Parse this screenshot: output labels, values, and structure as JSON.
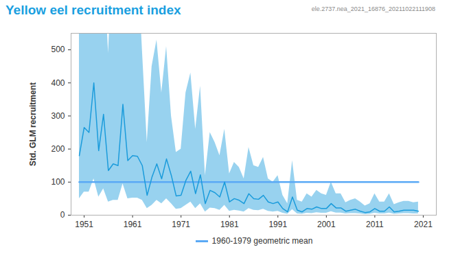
{
  "chart_data": {
    "type": "line",
    "title": "Yellow eel recruitment index",
    "annotations": [
      "ele.2737.nea_2021_16876_20211022111908"
    ],
    "y_label": "Std. GLM recruitment",
    "x": [
      1950,
      1951,
      1952,
      1953,
      1954,
      1955,
      1956,
      1957,
      1958,
      1959,
      1960,
      1961,
      1962,
      1963,
      1964,
      1965,
      1966,
      1967,
      1968,
      1969,
      1970,
      1971,
      1972,
      1973,
      1974,
      1975,
      1976,
      1977,
      1978,
      1979,
      1980,
      1981,
      1982,
      1983,
      1984,
      1985,
      1986,
      1987,
      1988,
      1989,
      1990,
      1991,
      1992,
      1993,
      1994,
      1995,
      1996,
      1997,
      1998,
      1999,
      2000,
      2001,
      2002,
      2003,
      2004,
      2005,
      2006,
      2007,
      2008,
      2009,
      2010,
      2011,
      2012,
      2013,
      2014,
      2015,
      2016,
      2017,
      2018,
      2019,
      2020
    ],
    "values": [
      180,
      265,
      250,
      400,
      195,
      305,
      135,
      155,
      150,
      335,
      165,
      180,
      178,
      150,
      60,
      115,
      155,
      110,
      170,
      120,
      58,
      60,
      105,
      133,
      65,
      122,
      35,
      75,
      68,
      55,
      100,
      40,
      50,
      45,
      35,
      65,
      50,
      48,
      60,
      40,
      35,
      40,
      20,
      10,
      55,
      15,
      10,
      20,
      18,
      25,
      20,
      20,
      35,
      22,
      22,
      12,
      15,
      18,
      12,
      8,
      10,
      20,
      12,
      12,
      25,
      10,
      12,
      15,
      15,
      15,
      12
    ],
    "lower": [
      50,
      70,
      70,
      110,
      55,
      80,
      40,
      45,
      45,
      95,
      50,
      52,
      52,
      45,
      20,
      30,
      45,
      35,
      50,
      35,
      18,
      20,
      30,
      40,
      20,
      35,
      10,
      22,
      20,
      15,
      30,
      12,
      15,
      13,
      10,
      20,
      15,
      14,
      18,
      12,
      10,
      12,
      6,
      3,
      17,
      4,
      3,
      6,
      5,
      8,
      6,
      6,
      11,
      7,
      7,
      4,
      5,
      5,
      4,
      2,
      3,
      6,
      4,
      4,
      7,
      3,
      4,
      5,
      5,
      4,
      4
    ],
    "upper": [
      800,
      800,
      800,
      800,
      800,
      800,
      490,
      800,
      800,
      800,
      800,
      800,
      800,
      500,
      220,
      450,
      530,
      370,
      510,
      300,
      190,
      200,
      370,
      430,
      260,
      390,
      120,
      250,
      220,
      180,
      260,
      125,
      160,
      145,
      110,
      205,
      150,
      145,
      175,
      110,
      100,
      120,
      60,
      35,
      165,
      45,
      40,
      65,
      55,
      75,
      65,
      60,
      100,
      65,
      65,
      38,
      45,
      50,
      40,
      28,
      35,
      65,
      40,
      40,
      65,
      32,
      38,
      42,
      42,
      38,
      40
    ],
    "color": "#1a9bdb",
    "reference": {
      "name": "1960-1979 geometric mean",
      "value": 100,
      "color": "#5aa9f5"
    },
    "xlim": [
      1948.3,
      2023.7
    ],
    "ylim": [
      0,
      550
    ],
    "xticks": [
      1951,
      1961,
      1971,
      1981,
      1991,
      2001,
      2011,
      2021
    ],
    "yticks": [
      0,
      100,
      200,
      300,
      400,
      500
    ],
    "grid": false,
    "legend": "bottom"
  }
}
